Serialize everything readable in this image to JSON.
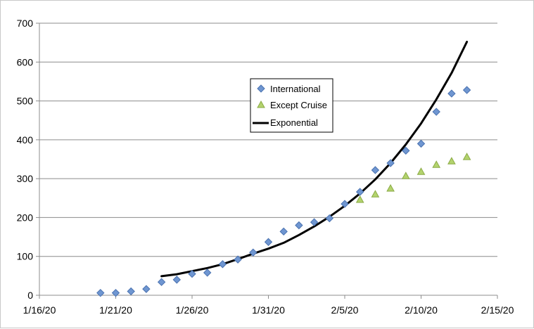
{
  "chart_data": {
    "type": "scatter",
    "title": "",
    "xlabel": "",
    "ylabel": "",
    "x_axis": {
      "min": "2020-01-16",
      "max": "2020-02-15",
      "ticks": [
        "2020-01-16",
        "2020-01-21",
        "2020-01-26",
        "2020-01-31",
        "2020-02-05",
        "2020-02-10",
        "2020-02-15"
      ],
      "tick_labels": [
        "1/16/20",
        "1/21/20",
        "1/26/20",
        "1/31/20",
        "2/5/20",
        "2/10/20",
        "2/15/20"
      ]
    },
    "y_axis": {
      "min": 0,
      "max": 700,
      "ticks": [
        0,
        100,
        200,
        300,
        400,
        500,
        600,
        700
      ],
      "tick_labels": [
        "0",
        "100",
        "200",
        "300",
        "400",
        "500",
        "600",
        "700"
      ]
    },
    "grid": {
      "horizontal": true,
      "vertical": false
    },
    "legend_position": "center-right",
    "series": [
      {
        "name": "International",
        "marker": "diamond",
        "color": "#6f96d1",
        "stroke": "#4a72b0",
        "points": [
          {
            "x": "2020-01-20",
            "y": 6
          },
          {
            "x": "2020-01-21",
            "y": 6
          },
          {
            "x": "2020-01-22",
            "y": 10
          },
          {
            "x": "2020-01-23",
            "y": 16
          },
          {
            "x": "2020-01-24",
            "y": 34
          },
          {
            "x": "2020-01-25",
            "y": 40
          },
          {
            "x": "2020-01-26",
            "y": 55
          },
          {
            "x": "2020-01-27",
            "y": 58
          },
          {
            "x": "2020-01-28",
            "y": 80
          },
          {
            "x": "2020-01-29",
            "y": 92
          },
          {
            "x": "2020-01-30",
            "y": 110
          },
          {
            "x": "2020-01-31",
            "y": 137
          },
          {
            "x": "2020-02-01",
            "y": 164
          },
          {
            "x": "2020-02-02",
            "y": 180
          },
          {
            "x": "2020-02-03",
            "y": 188
          },
          {
            "x": "2020-02-04",
            "y": 198
          },
          {
            "x": "2020-02-05",
            "y": 235
          },
          {
            "x": "2020-02-06",
            "y": 266
          },
          {
            "x": "2020-02-07",
            "y": 322
          },
          {
            "x": "2020-02-08",
            "y": 340
          },
          {
            "x": "2020-02-09",
            "y": 372
          },
          {
            "x": "2020-02-10",
            "y": 390
          },
          {
            "x": "2020-02-11",
            "y": 472
          },
          {
            "x": "2020-02-12",
            "y": 519
          },
          {
            "x": "2020-02-13",
            "y": 528
          }
        ]
      },
      {
        "name": "Except Cruise",
        "marker": "triangle",
        "color": "#b3d36d",
        "stroke": "#8aaa45",
        "points": [
          {
            "x": "2020-02-06",
            "y": 246
          },
          {
            "x": "2020-02-07",
            "y": 260
          },
          {
            "x": "2020-02-08",
            "y": 275
          },
          {
            "x": "2020-02-09",
            "y": 307
          },
          {
            "x": "2020-02-10",
            "y": 318
          },
          {
            "x": "2020-02-11",
            "y": 336
          },
          {
            "x": "2020-02-12",
            "y": 345
          },
          {
            "x": "2020-02-13",
            "y": 356
          }
        ]
      },
      {
        "name": "Exponential",
        "marker": "line",
        "color": "#000000",
        "points": [
          {
            "x": "2020-01-24",
            "y": 49
          },
          {
            "x": "2020-01-25",
            "y": 54
          },
          {
            "x": "2020-01-26",
            "y": 62
          },
          {
            "x": "2020-01-27",
            "y": 70
          },
          {
            "x": "2020-01-28",
            "y": 80
          },
          {
            "x": "2020-01-29",
            "y": 93
          },
          {
            "x": "2020-01-30",
            "y": 107
          },
          {
            "x": "2020-01-31",
            "y": 120
          },
          {
            "x": "2020-02-01",
            "y": 135
          },
          {
            "x": "2020-02-02",
            "y": 155
          },
          {
            "x": "2020-02-03",
            "y": 177
          },
          {
            "x": "2020-02-04",
            "y": 202
          },
          {
            "x": "2020-02-05",
            "y": 230
          },
          {
            "x": "2020-02-06",
            "y": 262
          },
          {
            "x": "2020-02-07",
            "y": 298
          },
          {
            "x": "2020-02-08",
            "y": 340
          },
          {
            "x": "2020-02-09",
            "y": 388
          },
          {
            "x": "2020-02-10",
            "y": 442
          },
          {
            "x": "2020-02-11",
            "y": 504
          },
          {
            "x": "2020-02-12",
            "y": 572
          },
          {
            "x": "2020-02-13",
            "y": 652
          }
        ]
      }
    ]
  }
}
